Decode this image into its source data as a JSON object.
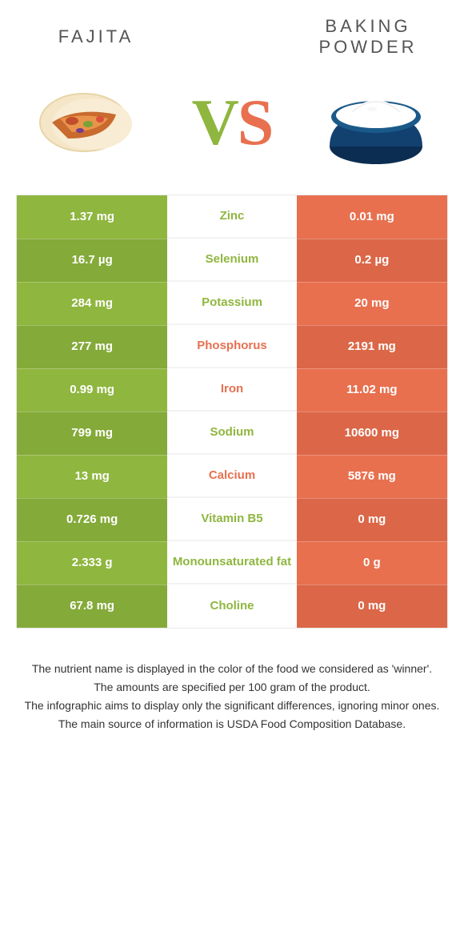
{
  "colors": {
    "left": "#8fb63f",
    "right": "#e8704f",
    "left_alt": "#84aa39",
    "right_alt": "#db6748"
  },
  "header": {
    "left_title": "Fajita",
    "right_title": "Baking powder",
    "vs_v": "V",
    "vs_s": "S"
  },
  "rows": [
    {
      "nutrient": "Zinc",
      "left": "1.37 mg",
      "right": "0.01 mg",
      "winner": "left"
    },
    {
      "nutrient": "Selenium",
      "left": "16.7 µg",
      "right": "0.2 µg",
      "winner": "left"
    },
    {
      "nutrient": "Potassium",
      "left": "284 mg",
      "right": "20 mg",
      "winner": "left"
    },
    {
      "nutrient": "Phosphorus",
      "left": "277 mg",
      "right": "2191 mg",
      "winner": "right"
    },
    {
      "nutrient": "Iron",
      "left": "0.99 mg",
      "right": "11.02 mg",
      "winner": "right"
    },
    {
      "nutrient": "Sodium",
      "left": "799 mg",
      "right": "10600 mg",
      "winner": "left"
    },
    {
      "nutrient": "Calcium",
      "left": "13 mg",
      "right": "5876 mg",
      "winner": "right"
    },
    {
      "nutrient": "Vitamin B5",
      "left": "0.726 mg",
      "right": "0 mg",
      "winner": "left"
    },
    {
      "nutrient": "Monounsaturated fat",
      "left": "2.333 g",
      "right": "0 g",
      "winner": "left"
    },
    {
      "nutrient": "Choline",
      "left": "67.8 mg",
      "right": "0 mg",
      "winner": "left"
    }
  ],
  "footnotes": [
    "The nutrient name is displayed in the color of the food we considered as 'winner'.",
    "The amounts are specified per 100 gram of the product.",
    "The infographic aims to display only the significant differences, ignoring minor ones.",
    "The main source of information is USDA Food Composition Database."
  ]
}
